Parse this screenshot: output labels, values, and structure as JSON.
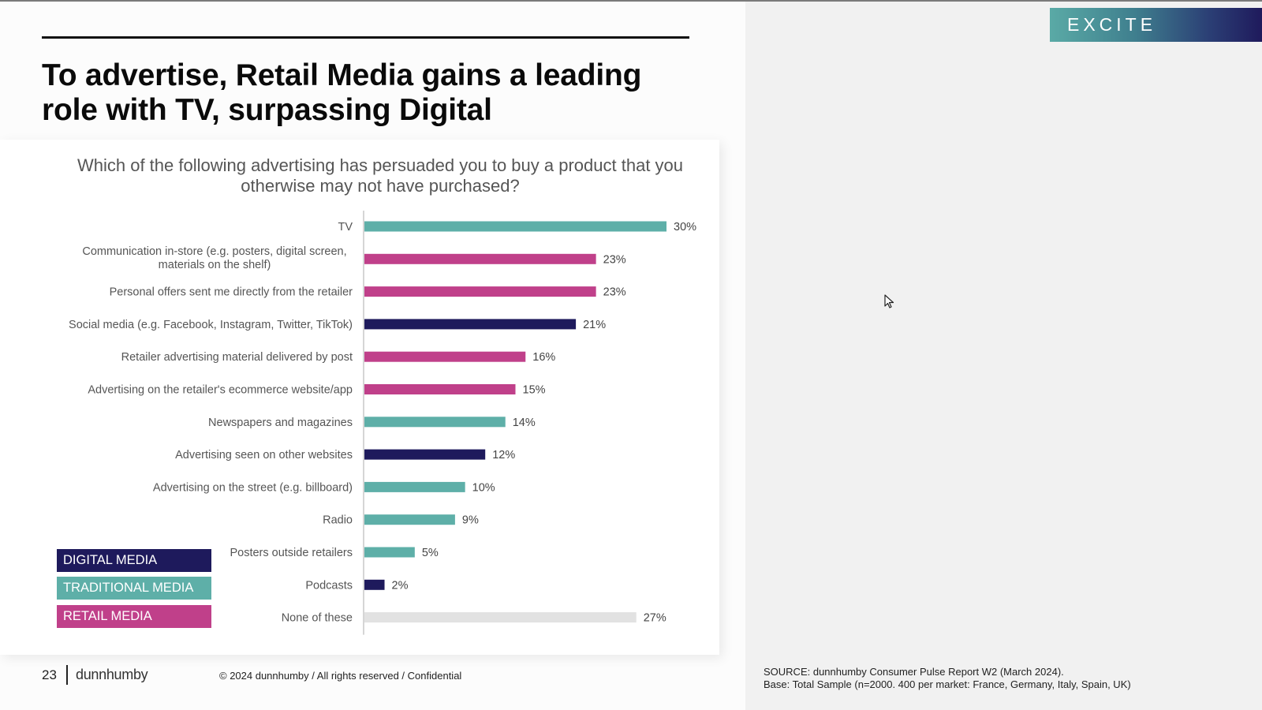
{
  "header": {
    "title": "To advertise, Retail Media gains a leading role with TV, surpassing Digital",
    "section_badge": "EXCITE"
  },
  "question": "Which of the following advertising has persuaded you to buy a product that you otherwise may not have purchased?",
  "colors": {
    "digital": "#1e1a5c",
    "traditional": "#5eafa8",
    "retail": "#c0408a",
    "none": "#e2e2e2",
    "label_text": "#555555"
  },
  "legend": [
    {
      "label": "DIGITAL MEDIA",
      "category": "digital"
    },
    {
      "label": "TRADITIONAL MEDIA",
      "category": "traditional"
    },
    {
      "label": "RETAIL MEDIA",
      "category": "retail"
    }
  ],
  "chart_data": {
    "type": "bar",
    "orientation": "horizontal",
    "title": "Which of the following advertising has persuaded you to buy a product that you otherwise may not have purchased?",
    "xlabel": "",
    "ylabel": "",
    "xlim": [
      0,
      30
    ],
    "grid": false,
    "legend_position": "bottom-left",
    "categories": [
      "TV",
      "Communication in-store (e.g. posters, digital screen, materials on the shelf)",
      "Personal offers sent me directly from the retailer",
      "Social media (e.g. Facebook, Instagram, Twitter, TikTok)",
      "Retailer advertising material delivered by post",
      "Advertising on the retailer's ecommerce website/app",
      "Newspapers and magazines",
      "Advertising seen on other websites",
      "Advertising on the street (e.g. billboard)",
      "Radio",
      "Posters outside retailers",
      "Podcasts",
      "None of these"
    ],
    "label_lines": [
      [
        "TV"
      ],
      [
        "Communication in-store (e.g. posters, digital screen,",
        "materials on the shelf)"
      ],
      [
        "Personal offers sent me directly from the retailer"
      ],
      [
        "Social media (e.g. Facebook, Instagram, Twitter, TikTok)"
      ],
      [
        "Retailer advertising material delivered by post"
      ],
      [
        "Advertising on the retailer's ecommerce website/app"
      ],
      [
        "Newspapers and magazines"
      ],
      [
        "Advertising seen on other websites"
      ],
      [
        "Advertising on the street (e.g. billboard)"
      ],
      [
        "Radio"
      ],
      [
        "Posters outside retailers"
      ],
      [
        "Podcasts"
      ],
      [
        "None of these"
      ]
    ],
    "values": [
      30,
      23,
      23,
      21,
      16,
      15,
      14,
      12,
      10,
      9,
      5,
      2,
      27
    ],
    "value_labels": [
      "30%",
      "23%",
      "23%",
      "21%",
      "16%",
      "15%",
      "14%",
      "12%",
      "10%",
      "9%",
      "5%",
      "2%",
      "27%"
    ],
    "media_type": [
      "traditional",
      "retail",
      "retail",
      "digital",
      "retail",
      "retail",
      "traditional",
      "digital",
      "traditional",
      "traditional",
      "traditional",
      "digital",
      "none"
    ],
    "unit": "%"
  },
  "footer": {
    "page_number": "23",
    "brand": "dunnhumby",
    "copyright": "© 2024 dunnhumby / All rights reserved / Confidential"
  },
  "source": {
    "line1": "SOURCE: dunnhumby Consumer Pulse Report W2 (March 2024).",
    "line2": "Base: Total Sample (n=2000. 400 per market: France, Germany, Italy, Spain, UK)"
  }
}
